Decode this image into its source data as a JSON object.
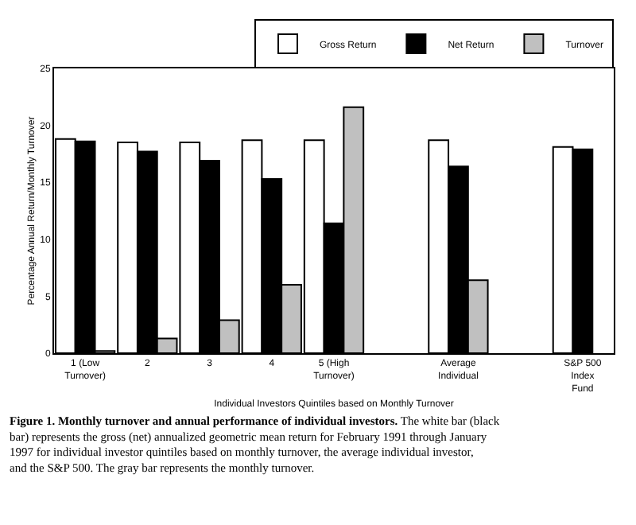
{
  "chart_data": {
    "type": "bar",
    "categories": [
      "1 (Low Turnover)",
      "2",
      "3",
      "4",
      "5 (High Turnover)",
      null,
      "Average Individual",
      null,
      "S&P 500 Index Fund"
    ],
    "series": [
      {
        "name": "Gross Return",
        "color": "#ffffff",
        "values": [
          18.8,
          18.5,
          18.5,
          18.7,
          18.7,
          null,
          18.7,
          null,
          18.1
        ]
      },
      {
        "name": "Net Return",
        "color": "#000000",
        "values": [
          18.6,
          17.7,
          16.9,
          15.3,
          11.4,
          null,
          16.4,
          null,
          17.9
        ]
      },
      {
        "name": "Turnover",
        "color": "#c0c0c0",
        "values": [
          0.2,
          1.3,
          2.9,
          6.0,
          21.6,
          null,
          6.4,
          null,
          null
        ]
      }
    ],
    "ylim": [
      0,
      25
    ],
    "yticks": [
      0,
      5,
      10,
      15,
      20,
      25
    ],
    "legend": "top right",
    "xlabel": "Individual Investors Quintiles based on Monthly Turnover",
    "ylabel": "Percentage Annual Return/Monthly Turnover",
    "annotations": [
      "Figure 1. Monthly turnover and annual performance of individual investors.",
      "The white bar (black bar) represents the gross (net) annualized geometric mean return for February 1991 through January 1997 for individual investor quintiles based on monthly turnover, the average individual investor, and the S&P 500. The gray bar represents the monthly turnover."
    ]
  }
}
